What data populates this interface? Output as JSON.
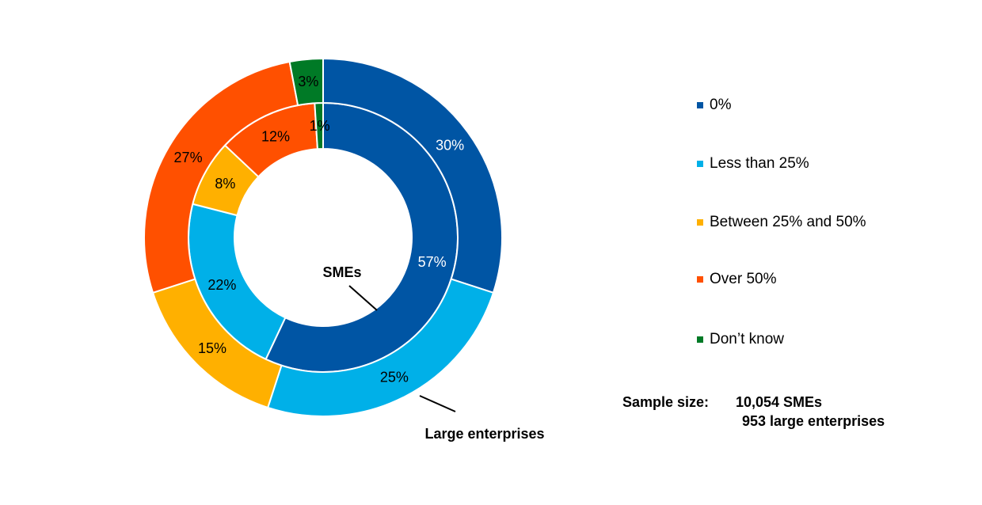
{
  "chart_data": {
    "type": "pie",
    "variant": "nested-donut",
    "categories": [
      "0%",
      "Less than 25%",
      "Between 25% and 50%",
      "Over 50%",
      "Don’t know"
    ],
    "colors": [
      "#0055A4",
      "#00B0E8",
      "#FFB000",
      "#FF5000",
      "#007A26"
    ],
    "series": [
      {
        "name": "SMEs",
        "values": [
          57,
          22,
          8,
          12,
          1
        ],
        "labels": [
          "57%",
          "22%",
          "8%",
          "12%",
          "1%"
        ]
      },
      {
        "name": "Large enterprises",
        "values": [
          30,
          25,
          15,
          27,
          3
        ],
        "labels": [
          "30%",
          "25%",
          "15%",
          "27%",
          "3%"
        ]
      }
    ],
    "legend_position": "right"
  },
  "legend": {
    "items": [
      "0%",
      "Less than 25%",
      "Between 25% and 50%",
      "Over 50%",
      "Don’t know"
    ]
  },
  "sample": {
    "label": "Sample size:",
    "sme": "10,054  SMEs",
    "large": "953 large enterprises"
  }
}
